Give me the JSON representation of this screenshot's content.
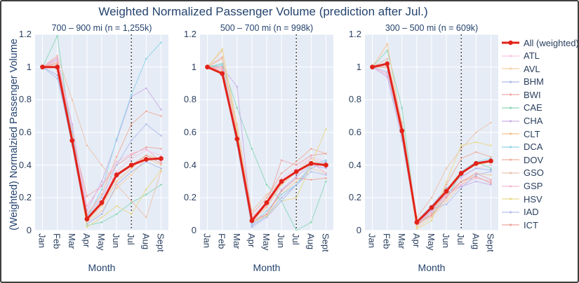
{
  "chart_data": {
    "type": "line",
    "title": "Weighted Normalized Passenger Volume (prediction after Jul.)",
    "ylabel": "(Weighted) Normalzied Passenger Volume",
    "xlabel": "Month",
    "x": [
      "Jan",
      "Feb",
      "Mar",
      "Apr",
      "May",
      "Jun",
      "Jul",
      "Aug",
      "Sept"
    ],
    "ylim": [
      0,
      1.2
    ],
    "ytick_labels": [
      "0",
      "0.2",
      "0.4",
      "0.6",
      "0.8",
      "1",
      "1.2"
    ],
    "grid": true,
    "legend_position": "right",
    "prediction_divider_month": "Jul",
    "colors": {
      "All (weighted)": "#e2231a",
      "ATL": "#f8c8e4",
      "AVL": "#f6cfa2",
      "BHM": "#aeb9e8",
      "BWI": "#eeaaaa",
      "CAE": "#8ed8b8",
      "CHA": "#cdb1e8",
      "CLT": "#f6c28e",
      "DCA": "#92d4ea",
      "DOV": "#f0b09e",
      "GSO": "#eec3ae",
      "GSP": "#f4b9d3",
      "HSV": "#ead98e",
      "IAD": "#b4c0ec",
      "ICT": "#efa49c"
    },
    "legend_items": [
      "All (weighted)",
      "ATL",
      "AVL",
      "BHM",
      "BWI",
      "CAE",
      "CHA",
      "CLT",
      "DCA",
      "DOV",
      "GSO",
      "GSP",
      "HSV",
      "IAD",
      "ICT"
    ],
    "panels": [
      {
        "title": "700 – 900 mi (n = 1,255k)",
        "series": [
          {
            "name": "All (weighted)",
            "values": [
              1.0,
              1.0,
              0.55,
              0.07,
              0.17,
              0.34,
              0.4,
              0.435,
              0.44
            ]
          },
          {
            "name": "ATL",
            "values": [
              1.0,
              1.04,
              0.6,
              0.1,
              0.2,
              0.36,
              0.44,
              0.49,
              0.46
            ]
          },
          {
            "name": "AVL",
            "values": [
              1.0,
              1.02,
              0.58,
              0.05,
              0.12,
              0.26,
              0.34,
              0.44,
              0.4
            ]
          },
          {
            "name": "BHM",
            "values": [
              1.0,
              0.95,
              0.52,
              0.04,
              0.1,
              0.28,
              0.36,
              0.42,
              0.38
            ]
          },
          {
            "name": "BWI",
            "values": [
              1.0,
              1.05,
              0.58,
              0.21,
              0.27,
              0.4,
              0.46,
              0.51,
              0.5
            ]
          },
          {
            "name": "CAE",
            "values": [
              1.0,
              1.19,
              0.55,
              0.03,
              0.05,
              0.1,
              0.17,
              0.22,
              0.28
            ]
          },
          {
            "name": "CHA",
            "values": [
              1.0,
              1.05,
              0.65,
              0.12,
              0.3,
              0.55,
              0.82,
              0.87,
              0.74
            ]
          },
          {
            "name": "CLT",
            "values": [
              1.0,
              1.0,
              0.55,
              0.06,
              0.15,
              0.3,
              0.38,
              0.46,
              0.44
            ]
          },
          {
            "name": "DCA",
            "values": [
              1.0,
              1.0,
              0.6,
              0.08,
              0.25,
              0.56,
              0.83,
              1.05,
              1.15
            ]
          },
          {
            "name": "DOV",
            "values": [
              1.0,
              1.03,
              0.57,
              0.1,
              0.22,
              0.45,
              0.65,
              0.73,
              0.7
            ]
          },
          {
            "name": "GSO",
            "values": [
              1.0,
              1.07,
              0.8,
              0.52,
              0.4,
              0.28,
              0.18,
              0.08,
              0.36
            ]
          },
          {
            "name": "GSP",
            "values": [
              1.0,
              1.06,
              0.63,
              0.15,
              0.28,
              0.42,
              0.47,
              0.5,
              0.42
            ]
          },
          {
            "name": "HSV",
            "values": [
              1.0,
              1.0,
              0.58,
              0.02,
              0.08,
              0.15,
              0.1,
              0.25,
              0.37
            ]
          },
          {
            "name": "IAD",
            "values": [
              1.0,
              0.93,
              0.55,
              0.08,
              0.2,
              0.4,
              0.55,
              0.65,
              0.58
            ]
          },
          {
            "name": "ICT",
            "values": [
              1.0,
              1.02,
              0.56,
              0.07,
              0.16,
              0.33,
              0.4,
              0.46,
              0.41
            ]
          }
        ]
      },
      {
        "title": "500 – 700 mi (n = 998k)",
        "series": [
          {
            "name": "All (weighted)",
            "values": [
              1.0,
              0.96,
              0.56,
              0.06,
              0.17,
              0.3,
              0.36,
              0.41,
              0.4
            ]
          },
          {
            "name": "ATL",
            "values": [
              1.0,
              1.0,
              0.58,
              0.08,
              0.18,
              0.32,
              0.38,
              0.45,
              0.42
            ]
          },
          {
            "name": "AVL",
            "values": [
              1.0,
              1.05,
              0.6,
              0.05,
              0.1,
              0.22,
              0.3,
              0.38,
              0.35
            ]
          },
          {
            "name": "BHM",
            "values": [
              1.0,
              1.02,
              0.54,
              0.03,
              0.09,
              0.2,
              0.28,
              0.38,
              0.42
            ]
          },
          {
            "name": "BWI",
            "values": [
              1.0,
              0.98,
              0.55,
              0.08,
              0.16,
              0.43,
              0.4,
              0.46,
              0.47
            ]
          },
          {
            "name": "CAE",
            "values": [
              1.0,
              1.02,
              0.75,
              0.5,
              0.28,
              0.18,
              0.0,
              0.05,
              0.3
            ]
          },
          {
            "name": "CHA",
            "values": [
              1.0,
              1.0,
              0.88,
              0.04,
              0.1,
              0.25,
              0.33,
              0.4,
              0.38
            ]
          },
          {
            "name": "CLT",
            "values": [
              1.0,
              0.97,
              0.54,
              0.06,
              0.14,
              0.28,
              0.36,
              0.42,
              0.4
            ]
          },
          {
            "name": "DCA",
            "values": [
              1.0,
              1.01,
              0.56,
              0.04,
              0.12,
              0.22,
              0.28,
              0.4,
              0.43
            ]
          },
          {
            "name": "DOV",
            "values": [
              1.0,
              1.06,
              0.6,
              0.1,
              0.2,
              0.35,
              0.42,
              0.5,
              0.47
            ]
          },
          {
            "name": "GSO",
            "values": [
              1.0,
              1.1,
              0.65,
              0.12,
              0.22,
              0.3,
              0.36,
              0.44,
              0.4
            ]
          },
          {
            "name": "GSP",
            "values": [
              1.0,
              0.99,
              0.57,
              0.07,
              0.15,
              0.3,
              0.35,
              0.42,
              0.35
            ]
          },
          {
            "name": "HSV",
            "values": [
              1.0,
              1.11,
              0.62,
              0.05,
              0.09,
              0.18,
              0.2,
              0.4,
              0.62
            ]
          },
          {
            "name": "IAD",
            "values": [
              1.0,
              0.96,
              0.52,
              0.02,
              0.08,
              0.18,
              0.28,
              0.36,
              0.34
            ]
          },
          {
            "name": "ICT",
            "values": [
              1.0,
              1.0,
              0.55,
              0.06,
              0.1,
              0.24,
              0.32,
              0.31,
              0.32
            ]
          }
        ]
      },
      {
        "title": "300 – 500 mi (n = 609k)",
        "series": [
          {
            "name": "All (weighted)",
            "values": [
              1.0,
              1.02,
              0.61,
              0.05,
              0.14,
              0.24,
              0.35,
              0.41,
              0.425
            ]
          },
          {
            "name": "ATL",
            "values": [
              1.0,
              0.95,
              0.58,
              0.05,
              0.13,
              0.22,
              0.32,
              0.38,
              0.4
            ]
          },
          {
            "name": "AVL",
            "values": [
              1.0,
              1.0,
              0.6,
              0.02,
              0.08,
              0.18,
              0.28,
              0.35,
              0.34
            ]
          },
          {
            "name": "BHM",
            "values": [
              1.0,
              1.05,
              0.62,
              0.06,
              0.15,
              0.26,
              0.33,
              0.38,
              0.37
            ]
          },
          {
            "name": "BWI",
            "values": [
              1.0,
              1.0,
              0.6,
              0.05,
              0.12,
              0.22,
              0.3,
              0.35,
              0.31
            ]
          },
          {
            "name": "CAE",
            "values": [
              1.0,
              1.1,
              0.75,
              0.04,
              0.1,
              0.2,
              0.35,
              0.42,
              0.38
            ]
          },
          {
            "name": "CHA",
            "values": [
              1.0,
              0.94,
              0.56,
              0.04,
              0.12,
              0.23,
              0.27,
              0.3,
              0.28
            ]
          },
          {
            "name": "CLT",
            "values": [
              1.0,
              1.14,
              0.64,
              0.06,
              0.14,
              0.25,
              0.36,
              0.4,
              0.42
            ]
          },
          {
            "name": "DCA",
            "values": [
              1.0,
              1.02,
              0.6,
              0.05,
              0.13,
              0.24,
              0.36,
              0.42,
              0.44
            ]
          },
          {
            "name": "DOV",
            "values": [
              1.0,
              1.0,
              0.58,
              0.03,
              0.1,
              0.28,
              0.44,
              0.48,
              0.45
            ]
          },
          {
            "name": "GSO",
            "values": [
              1.0,
              1.05,
              0.66,
              0.08,
              0.2,
              0.38,
              0.5,
              0.6,
              0.66
            ]
          },
          {
            "name": "GSP",
            "values": [
              1.0,
              0.96,
              0.56,
              0.04,
              0.11,
              0.21,
              0.28,
              0.32,
              0.3
            ]
          },
          {
            "name": "HSV",
            "values": [
              1.0,
              1.0,
              0.6,
              0.01,
              0.06,
              0.3,
              0.52,
              0.54,
              0.52
            ]
          },
          {
            "name": "IAD",
            "values": [
              1.0,
              0.97,
              0.55,
              0.05,
              0.13,
              0.16,
              0.26,
              0.34,
              0.36
            ]
          },
          {
            "name": "ICT",
            "values": [
              1.0,
              1.0,
              0.59,
              0.04,
              0.09,
              0.2,
              0.3,
              0.33,
              0.29
            ]
          }
        ]
      }
    ]
  },
  "style": {
    "plot_bg": "#e5ecf6",
    "grid_color": "#ffffff",
    "text_color": "#2a3f5f",
    "title_color": "#24436e",
    "divider_color": "#333333",
    "accent_red": "#e2231a"
  }
}
